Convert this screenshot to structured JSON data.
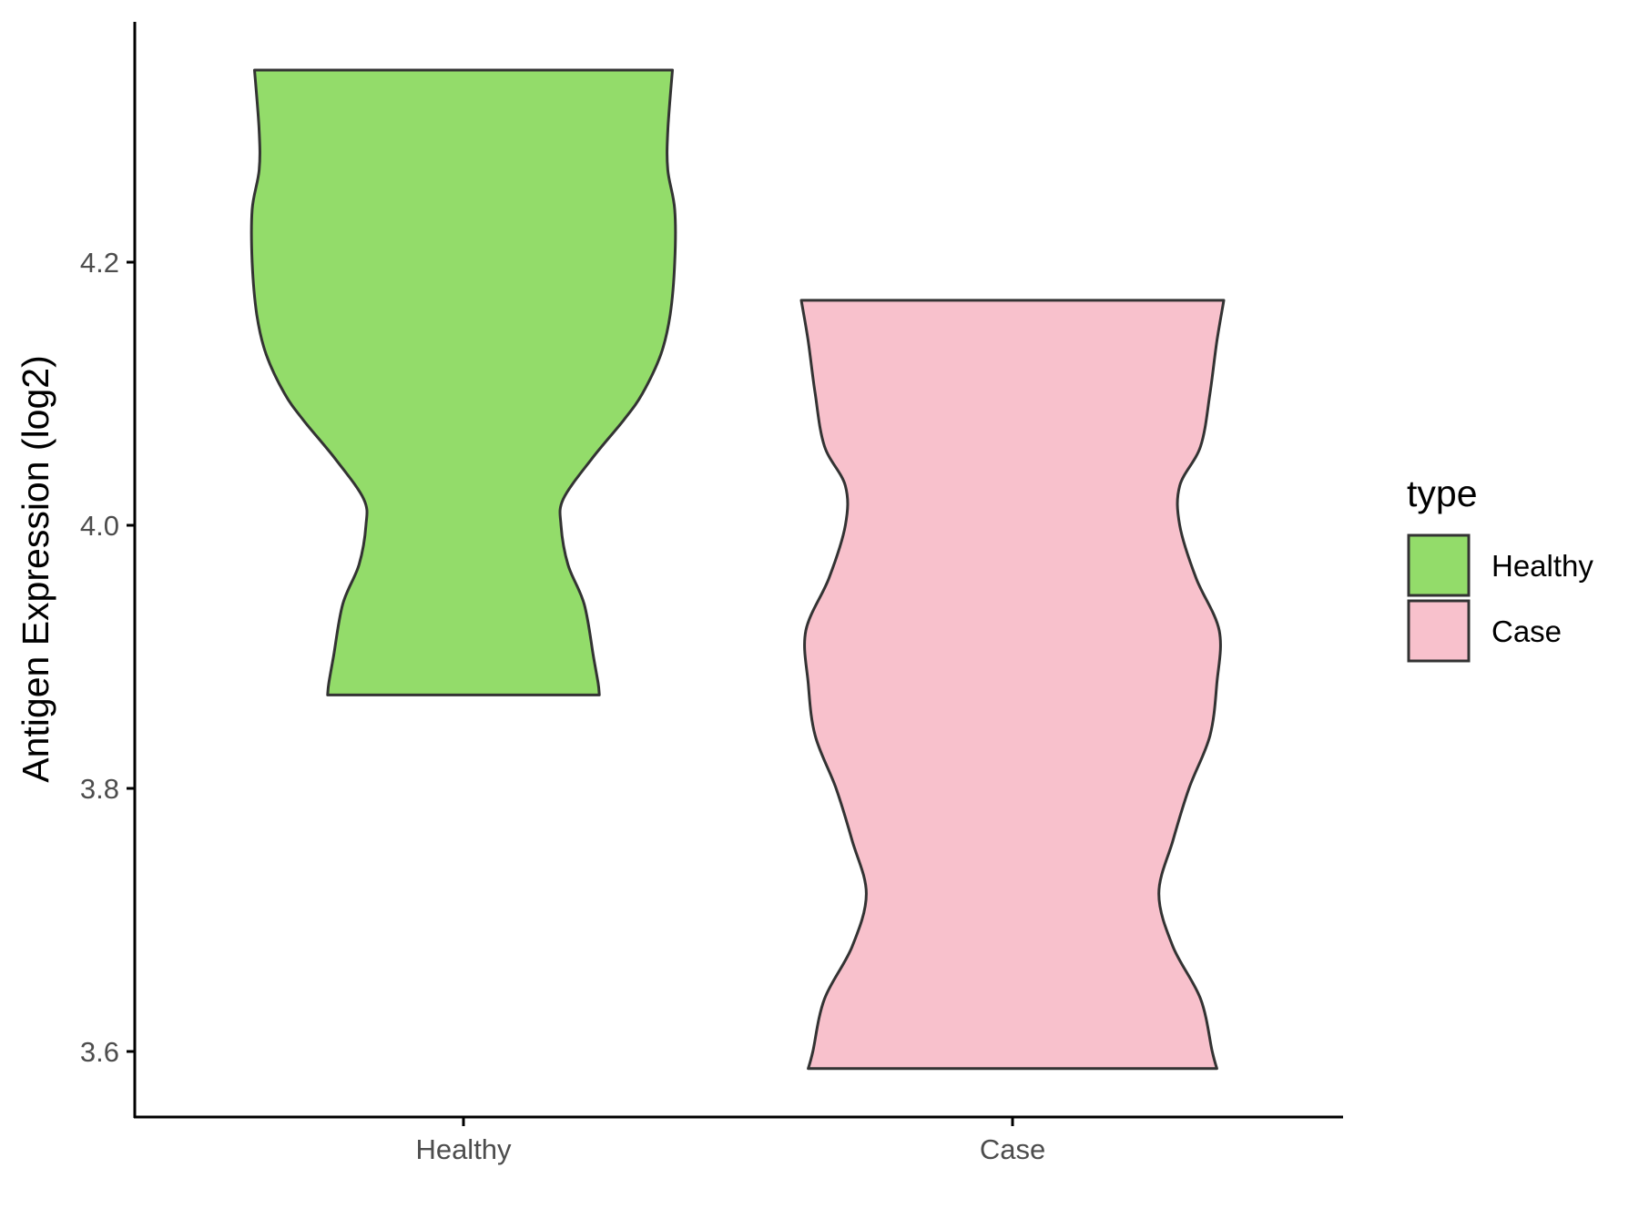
{
  "chart_data": {
    "type": "violin",
    "title": "",
    "xlabel": "",
    "ylabel": "Antigen Expression (log2)",
    "ylim": [
      3.55,
      4.38
    ],
    "yticks": [
      3.6,
      3.8,
      4.0,
      4.2
    ],
    "ytick_labels": [
      "3.6",
      "3.8",
      "4.0",
      "4.2"
    ],
    "categories": [
      "Healthy",
      "Case"
    ],
    "grid": false,
    "legend": {
      "title": "type",
      "position": "right",
      "entries": [
        "Healthy",
        "Case"
      ]
    },
    "series": [
      {
        "name": "Healthy",
        "color": "#93DC6A",
        "y_range": [
          3.871,
          4.346
        ],
        "density_profile": [
          [
            3.871,
            0.585
          ],
          [
            3.88,
            0.58
          ],
          [
            3.9,
            0.56
          ],
          [
            3.94,
            0.52
          ],
          [
            3.97,
            0.45
          ],
          [
            4.0,
            0.42
          ],
          [
            4.02,
            0.43
          ],
          [
            4.05,
            0.55
          ],
          [
            4.08,
            0.69
          ],
          [
            4.1,
            0.77
          ],
          [
            4.13,
            0.85
          ],
          [
            4.16,
            0.89
          ],
          [
            4.2,
            0.91
          ],
          [
            4.24,
            0.91
          ],
          [
            4.27,
            0.88
          ],
          [
            4.3,
            0.88
          ],
          [
            4.346,
            0.9
          ]
        ]
      },
      {
        "name": "Case",
        "color": "#F8C1CC",
        "y_range": [
          3.587,
          4.171
        ],
        "density_profile": [
          [
            3.587,
            0.88
          ],
          [
            3.6,
            0.86
          ],
          [
            3.64,
            0.81
          ],
          [
            3.68,
            0.69
          ],
          [
            3.72,
            0.63
          ],
          [
            3.76,
            0.69
          ],
          [
            3.8,
            0.76
          ],
          [
            3.84,
            0.85
          ],
          [
            3.88,
            0.88
          ],
          [
            3.92,
            0.89
          ],
          [
            3.96,
            0.79
          ],
          [
            4.0,
            0.72
          ],
          [
            4.03,
            0.72
          ],
          [
            4.06,
            0.81
          ],
          [
            4.1,
            0.85
          ],
          [
            4.14,
            0.88
          ],
          [
            4.171,
            0.91
          ]
        ]
      }
    ]
  }
}
